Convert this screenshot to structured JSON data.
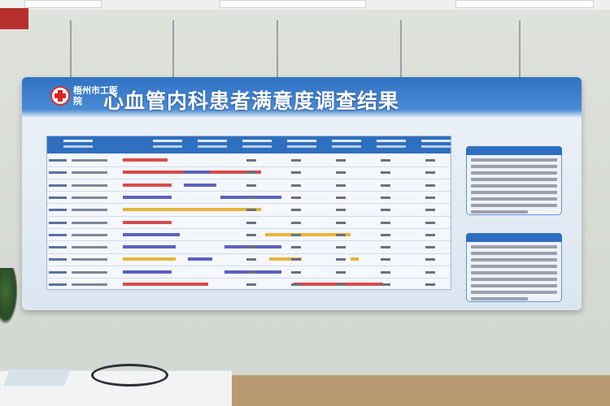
{
  "board": {
    "hospital_name": "梧州市工医院",
    "title": "心血管内科患者满意度调查结果"
  },
  "colors": {
    "board_blue": "#2f72c3",
    "bar_red": "#d94b4b",
    "bar_blue": "#5a62c0",
    "bar_yellow": "#e8b43a"
  },
  "icons": [
    "hospital-cross-logo-icon",
    "stethoscope-icon"
  ]
}
